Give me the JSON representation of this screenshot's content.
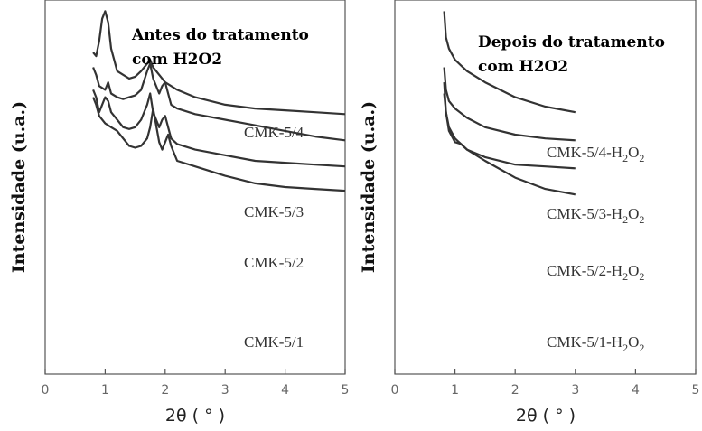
{
  "chart_data": [
    {
      "type": "line",
      "title": [
        "Antes do tratamento",
        "com H2O2"
      ],
      "xlabel": "2θ ( ° )",
      "ylabel": "Intensidade (u.a.)",
      "xlim": [
        0,
        5
      ],
      "xticks": [
        "0",
        "1",
        "2",
        "3",
        "4",
        "5"
      ],
      "series": [
        {
          "name": "CMK-5/4",
          "x": [
            0.8,
            0.85,
            0.9,
            0.95,
            1.0,
            1.05,
            1.1,
            1.2,
            1.3,
            1.4,
            1.5,
            1.6,
            1.7,
            1.75,
            1.8,
            1.9,
            2.0,
            2.1,
            2.2,
            2.5,
            3.0,
            3.5,
            4.0,
            4.5,
            5.0
          ],
          "y": [
            86,
            85,
            89,
            95,
            97,
            94,
            87,
            81,
            80,
            79,
            79.5,
            81,
            83,
            84,
            82,
            80,
            78,
            77,
            76,
            74,
            72,
            71,
            70.5,
            70,
            69.5
          ]
        },
        {
          "name": "CMK-5/3",
          "x": [
            0.8,
            0.85,
            0.9,
            1.0,
            1.05,
            1.1,
            1.2,
            1.3,
            1.4,
            1.5,
            1.6,
            1.7,
            1.75,
            1.8,
            1.9,
            1.95,
            2.0,
            2.05,
            2.1,
            2.2,
            2.5,
            3.0,
            3.5,
            4.0,
            4.5,
            5.0
          ],
          "y": [
            82,
            80,
            77,
            76,
            78,
            75,
            74,
            73.5,
            74,
            74.5,
            76,
            81,
            83,
            79,
            75,
            77,
            78,
            75,
            72,
            71,
            69.5,
            68,
            66.5,
            65,
            63.5,
            62.5
          ]
        },
        {
          "name": "CMK-5/2",
          "x": [
            0.8,
            0.85,
            0.9,
            0.95,
            1.0,
            1.05,
            1.1,
            1.2,
            1.3,
            1.4,
            1.5,
            1.6,
            1.7,
            1.75,
            1.8,
            1.9,
            1.95,
            2.0,
            2.05,
            2.1,
            2.2,
            2.5,
            3.0,
            3.5,
            4.0,
            4.5,
            5.0
          ],
          "y": [
            76,
            74,
            70,
            72,
            74,
            73,
            70,
            68,
            66,
            65.5,
            66,
            68,
            72,
            75,
            70,
            66,
            68,
            69,
            66,
            63,
            61.5,
            60,
            58.5,
            57,
            56.5,
            56,
            55.5
          ]
        },
        {
          "name": "CMK-5/1",
          "x": [
            0.8,
            0.85,
            0.9,
            1.0,
            1.1,
            1.2,
            1.3,
            1.4,
            1.5,
            1.6,
            1.7,
            1.75,
            1.8,
            1.9,
            1.95,
            2.0,
            2.05,
            2.1,
            2.2,
            2.5,
            3.0,
            3.5,
            4.0,
            4.5,
            5.0
          ],
          "y": [
            74,
            72,
            69,
            67,
            66,
            65,
            63,
            61,
            60.5,
            61,
            63,
            66,
            71,
            62,
            60,
            62,
            64,
            61,
            57,
            55.5,
            53,
            51,
            50,
            49.5,
            49
          ]
        }
      ],
      "grid": false
    },
    {
      "type": "line",
      "title": [
        "Depois do tratamento",
        "com H2O2"
      ],
      "xlabel": "2θ ( ° )",
      "ylabel": "Intensidade (u.a.)",
      "xlim": [
        0,
        5
      ],
      "xticks": [
        "0",
        "1",
        "2",
        "3",
        "4",
        "5"
      ],
      "series": [
        {
          "name": "CMK-5/4-H2O2",
          "label_main": "CMK-5/4-H",
          "label_sub": "2",
          "label_mid": "O",
          "label_sub2": "2",
          "x": [
            0.82,
            0.85,
            0.9,
            1.0,
            1.2,
            1.5,
            2.0,
            2.5,
            3.0
          ],
          "y": [
            97,
            90,
            87,
            84,
            81,
            78,
            74,
            71.5,
            70
          ]
        },
        {
          "name": "CMK-5/3-H2O2",
          "label_main": "CMK-5/3-H",
          "label_sub": "2",
          "label_mid": "O",
          "label_sub2": "2",
          "x": [
            0.82,
            0.85,
            0.9,
            1.0,
            1.2,
            1.5,
            2.0,
            2.5,
            3.0
          ],
          "y": [
            82,
            76,
            73,
            71,
            68.5,
            66,
            64,
            63,
            62.5
          ]
        },
        {
          "name": "CMK-5/2-H2O2",
          "label_main": "CMK-5/2-H",
          "label_sub": "2",
          "label_mid": "O",
          "label_sub2": "2",
          "x": [
            0.82,
            0.85,
            0.9,
            1.0,
            1.2,
            1.5,
            2.0,
            2.5,
            3.0
          ],
          "y": [
            78,
            70,
            66,
            63,
            60,
            58,
            56,
            55.5,
            55
          ]
        },
        {
          "name": "CMK-5/1-H2O2",
          "label_main": "CMK-5/1-H",
          "label_sub": "2",
          "label_mid": "O",
          "label_sub2": "2",
          "x": [
            0.82,
            0.85,
            0.9,
            1.0,
            1.1,
            1.2,
            1.5,
            2.0,
            2.5,
            3.0
          ],
          "y": [
            75,
            70,
            65,
            62,
            61.5,
            60,
            57,
            52.5,
            49.5,
            48
          ]
        }
      ],
      "grid": false
    }
  ]
}
